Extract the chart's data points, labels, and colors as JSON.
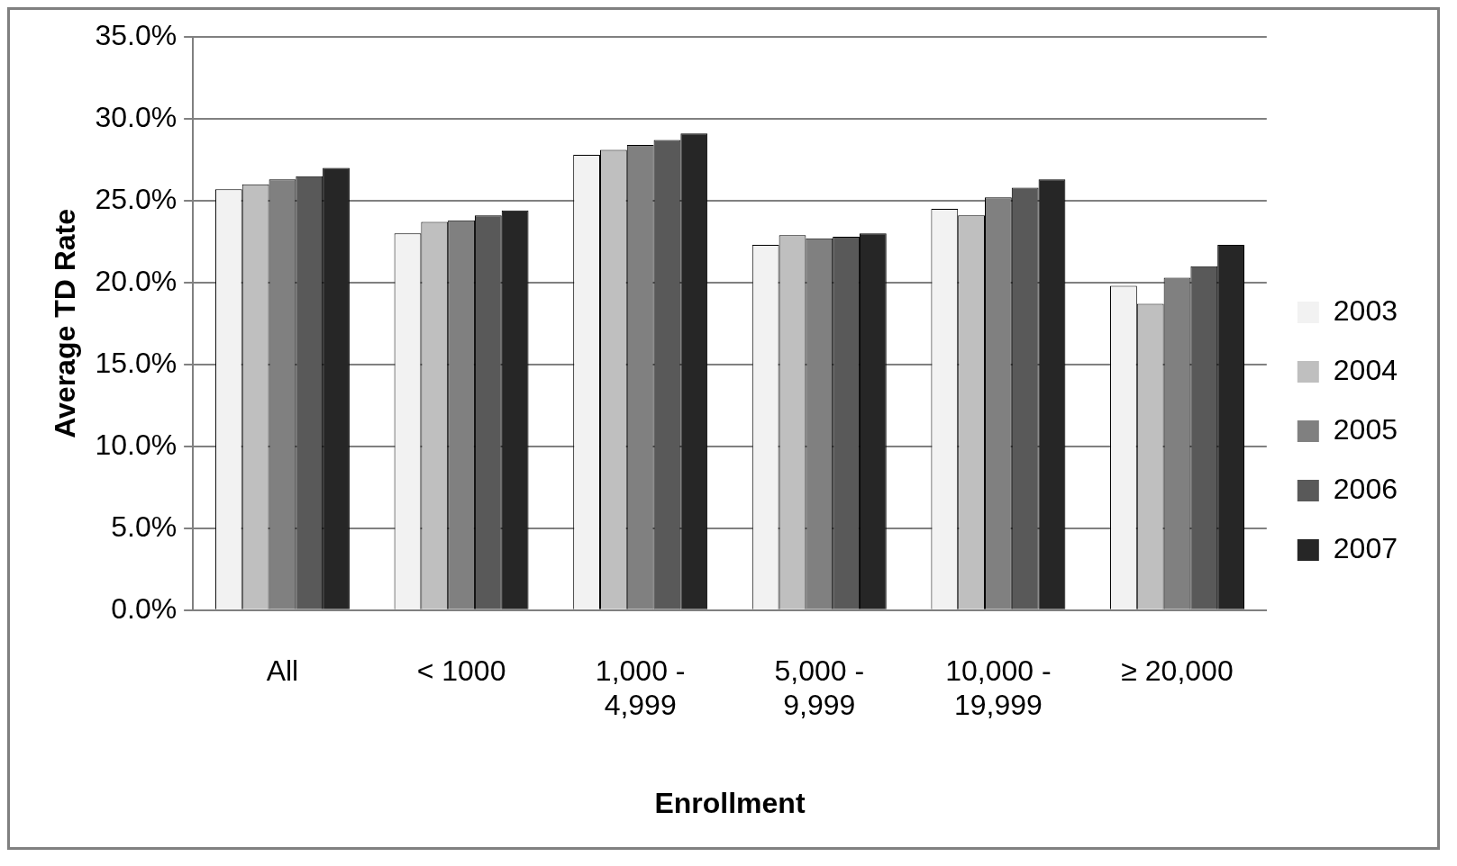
{
  "chart_data": {
    "type": "bar",
    "xlabel": "Enrollment",
    "ylabel": "Average TD Rate",
    "categories": [
      "All",
      "< 1000",
      "1,000 - 4,999",
      "5,000 - 9,999",
      "10,000 - 19,999",
      "≥ 20,000"
    ],
    "series": [
      {
        "name": "2003",
        "color": "#f2f2f2",
        "values": [
          25.7,
          23.0,
          27.8,
          22.3,
          24.5,
          19.8
        ]
      },
      {
        "name": "2004",
        "color": "#bfbfbf",
        "values": [
          26.0,
          23.7,
          28.1,
          22.9,
          24.1,
          18.7
        ]
      },
      {
        "name": "2005",
        "color": "#808080",
        "values": [
          26.3,
          23.8,
          28.4,
          22.7,
          25.2,
          20.3
        ]
      },
      {
        "name": "2006",
        "color": "#595959",
        "values": [
          26.5,
          24.1,
          28.7,
          22.8,
          25.8,
          21.0
        ]
      },
      {
        "name": "2007",
        "color": "#262626",
        "values": [
          27.0,
          24.4,
          29.1,
          23.0,
          26.3,
          22.3
        ]
      }
    ],
    "ylim": [
      0,
      35
    ],
    "yticks": [
      {
        "value": 0,
        "label": "0.0%"
      },
      {
        "value": 5,
        "label": "5.0%"
      },
      {
        "value": 10,
        "label": "10.0%"
      },
      {
        "value": 15,
        "label": "15.0%"
      },
      {
        "value": 20,
        "label": "20.0%"
      },
      {
        "value": 25,
        "label": "25.0%"
      },
      {
        "value": 30,
        "label": "30.0%"
      },
      {
        "value": 35,
        "label": "35.0%"
      }
    ],
    "grid": "y",
    "legend": "right"
  }
}
